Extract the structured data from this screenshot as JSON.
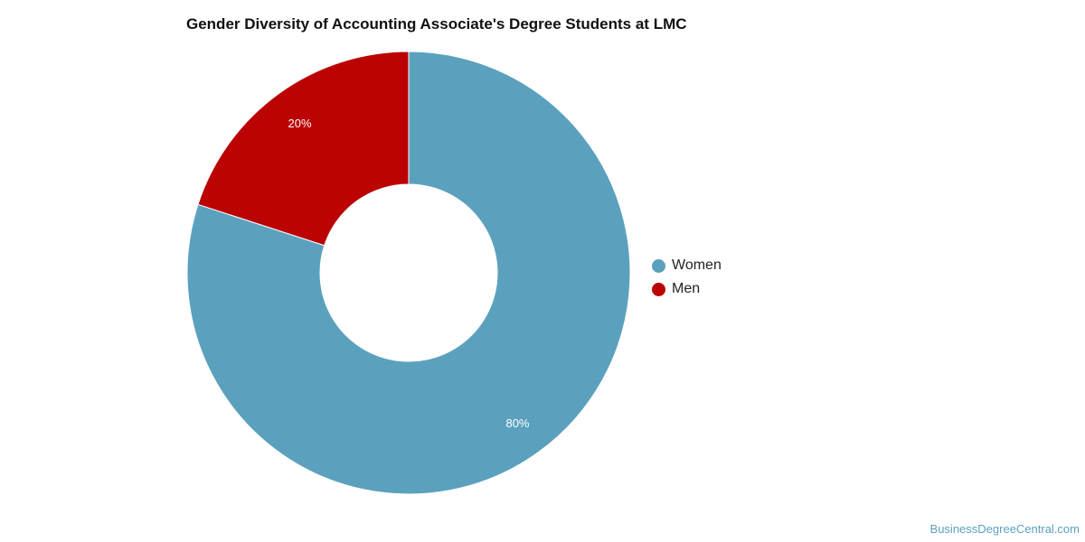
{
  "chart_data": {
    "type": "pie",
    "title": "Gender Diversity of Accounting Associate's Degree Students at LMC",
    "categories": [
      "Women",
      "Men"
    ],
    "values": [
      80,
      20
    ],
    "data_labels": [
      "80%",
      "20%"
    ],
    "colors": [
      "#5ba1be",
      "#bb0303"
    ],
    "donut": true,
    "legend_position": "right"
  },
  "watermark": "BusinessDegreeCentral.com"
}
